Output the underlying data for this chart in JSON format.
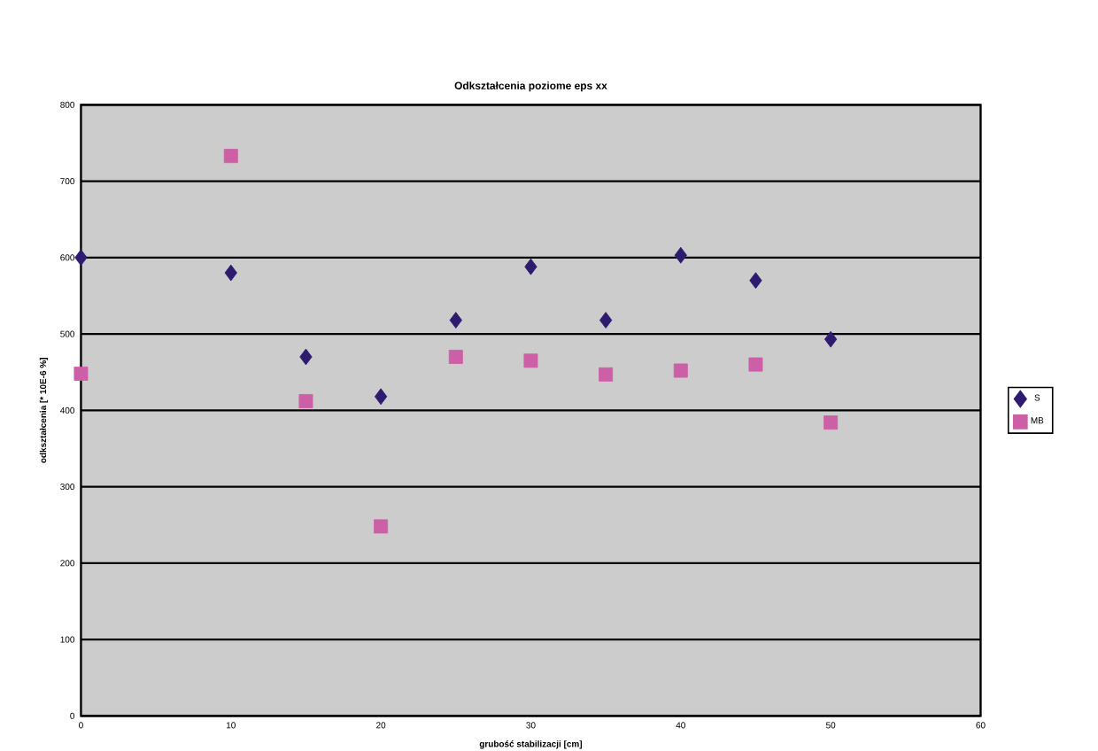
{
  "chart_data": {
    "type": "scatter",
    "title": "Odkształcenia poziome eps xx",
    "xlabel": "grubość stabilizacji [cm]",
    "ylabel": "odkształcenia [* 10E-6 %]",
    "x": [
      0,
      10,
      15,
      20,
      25,
      30,
      35,
      40,
      45,
      50
    ],
    "series": [
      {
        "name": "S",
        "color": "#2e1a6e",
        "marker": "diamond",
        "values": [
          600,
          580,
          470,
          418,
          518,
          588,
          518,
          603,
          570,
          493
        ]
      },
      {
        "name": "MB",
        "color": "#cc5fa6",
        "marker": "square",
        "values": [
          448,
          733,
          412,
          248,
          470,
          465,
          447,
          452,
          460,
          384
        ]
      }
    ],
    "xlim": [
      0,
      60
    ],
    "ylim": [
      0,
      800
    ],
    "xticks": [
      0,
      10,
      20,
      30,
      40,
      50,
      60
    ],
    "yticks": [
      0,
      100,
      200,
      300,
      400,
      500,
      600,
      700,
      800
    ],
    "grid": "y",
    "legend": "right"
  }
}
